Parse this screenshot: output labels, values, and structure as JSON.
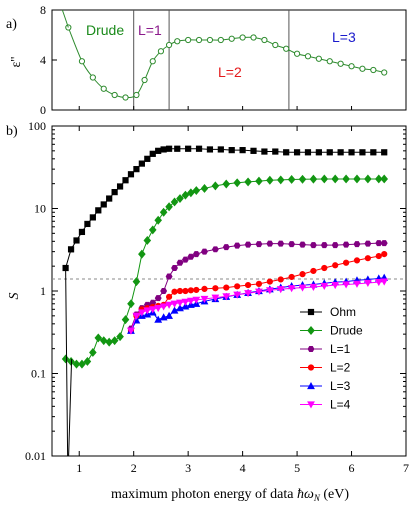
{
  "chart_data": [
    {
      "panel": "a)",
      "type": "line",
      "ylabel": "ε''",
      "xlim": [
        0.5,
        7
      ],
      "ylim": [
        0,
        8
      ],
      "yticks": [
        "0",
        "4",
        "8"
      ],
      "vlines": [
        2.0,
        2.65,
        4.85
      ],
      "regions": [
        {
          "label": "Drude",
          "color": "#1a8a1a"
        },
        {
          "label": "L=1",
          "color": "#8b1a8b"
        },
        {
          "label": "L=2",
          "color": "#e41a1c"
        },
        {
          "label": "L=3",
          "color": "#1a1acc"
        }
      ],
      "series": [
        {
          "color": "#2e8b2e",
          "x": [
            0.8,
            1.05,
            1.25,
            1.45,
            1.65,
            1.85,
            2.05,
            2.2,
            2.35,
            2.5,
            2.65,
            2.8,
            3.0,
            3.2,
            3.4,
            3.6,
            3.8,
            4.0,
            4.2,
            4.4,
            4.6,
            4.8,
            5.0,
            5.2,
            5.4,
            5.6,
            5.8,
            6.0,
            6.2,
            6.4,
            6.6
          ],
          "y": [
            6.6,
            3.9,
            2.6,
            1.7,
            1.2,
            1.0,
            1.2,
            2.4,
            3.9,
            4.7,
            5.2,
            5.5,
            5.6,
            5.6,
            5.6,
            5.6,
            5.7,
            5.8,
            5.8,
            5.6,
            5.2,
            4.9,
            4.5,
            4.3,
            4.1,
            3.9,
            3.7,
            3.5,
            3.3,
            3.2,
            3.0
          ]
        }
      ]
    },
    {
      "panel": "b)",
      "type": "line",
      "xlabel_prefix": "maximum photon energy of data ",
      "xlabel_symbol": "ħω",
      "xlabel_sub": "N",
      "xlabel_suffix": " (eV)",
      "ylabel": "S",
      "yscale": "log",
      "xlim": [
        0.5,
        7
      ],
      "ylim": [
        0.01,
        100
      ],
      "xticks": [
        "1",
        "2",
        "3",
        "4",
        "5",
        "6",
        "7"
      ],
      "yticks": [
        "0.01",
        "0.1",
        "1",
        "10",
        "100"
      ],
      "hline": 1.4,
      "legend_position": "lower-right",
      "series": [
        {
          "name": "Ohm",
          "color": "#000000",
          "marker": "square",
          "x": [
            0.75,
            0.85,
            0.95,
            1.05,
            1.15,
            1.25,
            1.35,
            1.45,
            1.55,
            1.65,
            1.75,
            1.85,
            1.95,
            2.05,
            2.15,
            2.25,
            2.35,
            2.45,
            2.55,
            2.65,
            2.8,
            3.0,
            3.2,
            3.4,
            3.6,
            3.8,
            4.0,
            4.2,
            4.4,
            4.6,
            4.8,
            5.0,
            5.2,
            5.4,
            5.6,
            5.8,
            6.0,
            6.2,
            6.4,
            6.6
          ],
          "y": [
            1.9,
            3.2,
            4.1,
            5.2,
            6.5,
            7.8,
            9.5,
            11.2,
            13.2,
            15.8,
            18.5,
            22,
            26,
            30,
            35,
            40,
            46,
            50,
            52,
            53,
            53,
            53,
            53,
            52,
            52,
            51,
            51,
            50,
            49,
            49,
            48,
            48,
            48,
            48,
            48,
            48,
            48,
            48,
            48,
            48
          ]
        },
        {
          "name": "Drude",
          "color": "#129612",
          "marker": "diamond",
          "x": [
            0.75,
            0.85,
            0.95,
            1.05,
            1.15,
            1.25,
            1.35,
            1.45,
            1.55,
            1.65,
            1.75,
            1.85,
            1.95,
            2.05,
            2.15,
            2.25,
            2.35,
            2.45,
            2.55,
            2.65,
            2.75,
            2.85,
            2.95,
            3.05,
            3.15,
            3.3,
            3.5,
            3.7,
            3.9,
            4.1,
            4.3,
            4.5,
            4.7,
            4.9,
            5.1,
            5.3,
            5.5,
            5.7,
            5.9,
            6.1,
            6.3,
            6.5,
            6.6
          ],
          "y": [
            0.15,
            0.14,
            0.13,
            0.13,
            0.14,
            0.18,
            0.27,
            0.25,
            0.24,
            0.25,
            0.28,
            0.45,
            0.7,
            1.3,
            2.8,
            4.1,
            5.5,
            7.2,
            9,
            10.5,
            12,
            13.2,
            14.5,
            15.5,
            16.5,
            17.5,
            18.8,
            19.8,
            20.5,
            21,
            21.5,
            22,
            22.2,
            22.5,
            22.6,
            22.7,
            22.8,
            22.8,
            22.8,
            22.8,
            22.8,
            22.8,
            22.8
          ]
        },
        {
          "name": "L=1",
          "color": "#800080",
          "marker": "hexagon",
          "x": [
            1.95,
            2.05,
            2.15,
            2.25,
            2.35,
            2.45,
            2.55,
            2.65,
            2.75,
            2.85,
            2.95,
            3.05,
            3.15,
            3.3,
            3.5,
            3.7,
            3.9,
            4.1,
            4.3,
            4.5,
            4.7,
            4.9,
            5.1,
            5.3,
            5.5,
            5.7,
            5.9,
            6.1,
            6.3,
            6.5,
            6.6
          ],
          "y": [
            0.35,
            0.52,
            0.62,
            0.68,
            0.72,
            0.82,
            1.0,
            1.5,
            1.9,
            2.2,
            2.4,
            2.6,
            2.8,
            3.0,
            3.2,
            3.4,
            3.55,
            3.65,
            3.7,
            3.75,
            3.75,
            3.7,
            3.65,
            3.6,
            3.6,
            3.6,
            3.65,
            3.7,
            3.75,
            3.8,
            3.8
          ]
        },
        {
          "name": "L=2",
          "color": "#ff0000",
          "marker": "circle",
          "x": [
            1.95,
            2.05,
            2.15,
            2.25,
            2.35,
            2.45,
            2.55,
            2.65,
            2.75,
            2.85,
            2.95,
            3.05,
            3.15,
            3.3,
            3.5,
            3.7,
            3.9,
            4.1,
            4.3,
            4.5,
            4.7,
            4.9,
            5.1,
            5.3,
            5.5,
            5.7,
            5.9,
            6.1,
            6.3,
            6.5,
            6.6
          ],
          "y": [
            0.33,
            0.5,
            0.6,
            0.62,
            0.64,
            0.66,
            0.68,
            0.85,
            0.98,
            1.0,
            1.0,
            1.02,
            1.03,
            1.06,
            1.08,
            1.1,
            1.14,
            1.18,
            1.22,
            1.3,
            1.38,
            1.48,
            1.6,
            1.75,
            1.9,
            2.05,
            2.2,
            2.35,
            2.5,
            2.65,
            2.8
          ]
        },
        {
          "name": "L=3",
          "color": "#0000ff",
          "marker": "triangle-up",
          "x": [
            1.95,
            2.05,
            2.15,
            2.25,
            2.35,
            2.45,
            2.55,
            2.65,
            2.75,
            2.85,
            2.95,
            3.05,
            3.15,
            3.3,
            3.5,
            3.7,
            3.9,
            4.1,
            4.3,
            4.5,
            4.7,
            4.9,
            5.1,
            5.3,
            5.5,
            5.7,
            5.9,
            6.1,
            6.3,
            6.5,
            6.6
          ],
          "y": [
            0.33,
            0.44,
            0.5,
            0.52,
            0.55,
            0.45,
            0.48,
            0.5,
            0.58,
            0.62,
            0.65,
            0.68,
            0.7,
            0.75,
            0.8,
            0.85,
            0.9,
            0.95,
            1.0,
            1.05,
            1.1,
            1.15,
            1.18,
            1.2,
            1.24,
            1.28,
            1.3,
            1.35,
            1.38,
            1.42,
            1.45
          ]
        },
        {
          "name": "L=4",
          "color": "#ff00ff",
          "marker": "triangle-down",
          "x": [
            1.95,
            2.05,
            2.15,
            2.25,
            2.35,
            2.45,
            2.55,
            2.65,
            2.75,
            2.85,
            2.95,
            3.05,
            3.15,
            3.3,
            3.5,
            3.7,
            3.9,
            4.1,
            4.3,
            4.5,
            4.7,
            4.9,
            5.1,
            5.3,
            5.5,
            5.7,
            5.9,
            6.1,
            6.3,
            6.5,
            6.6
          ],
          "y": [
            0.33,
            0.5,
            0.55,
            0.58,
            0.6,
            0.62,
            0.65,
            0.68,
            0.7,
            0.72,
            0.74,
            0.76,
            0.78,
            0.8,
            0.83,
            0.86,
            0.9,
            0.94,
            0.98,
            1.02,
            1.05,
            1.08,
            1.1,
            1.12,
            1.15,
            1.18,
            1.2,
            1.22,
            1.25,
            1.28,
            1.3
          ]
        }
      ]
    }
  ]
}
